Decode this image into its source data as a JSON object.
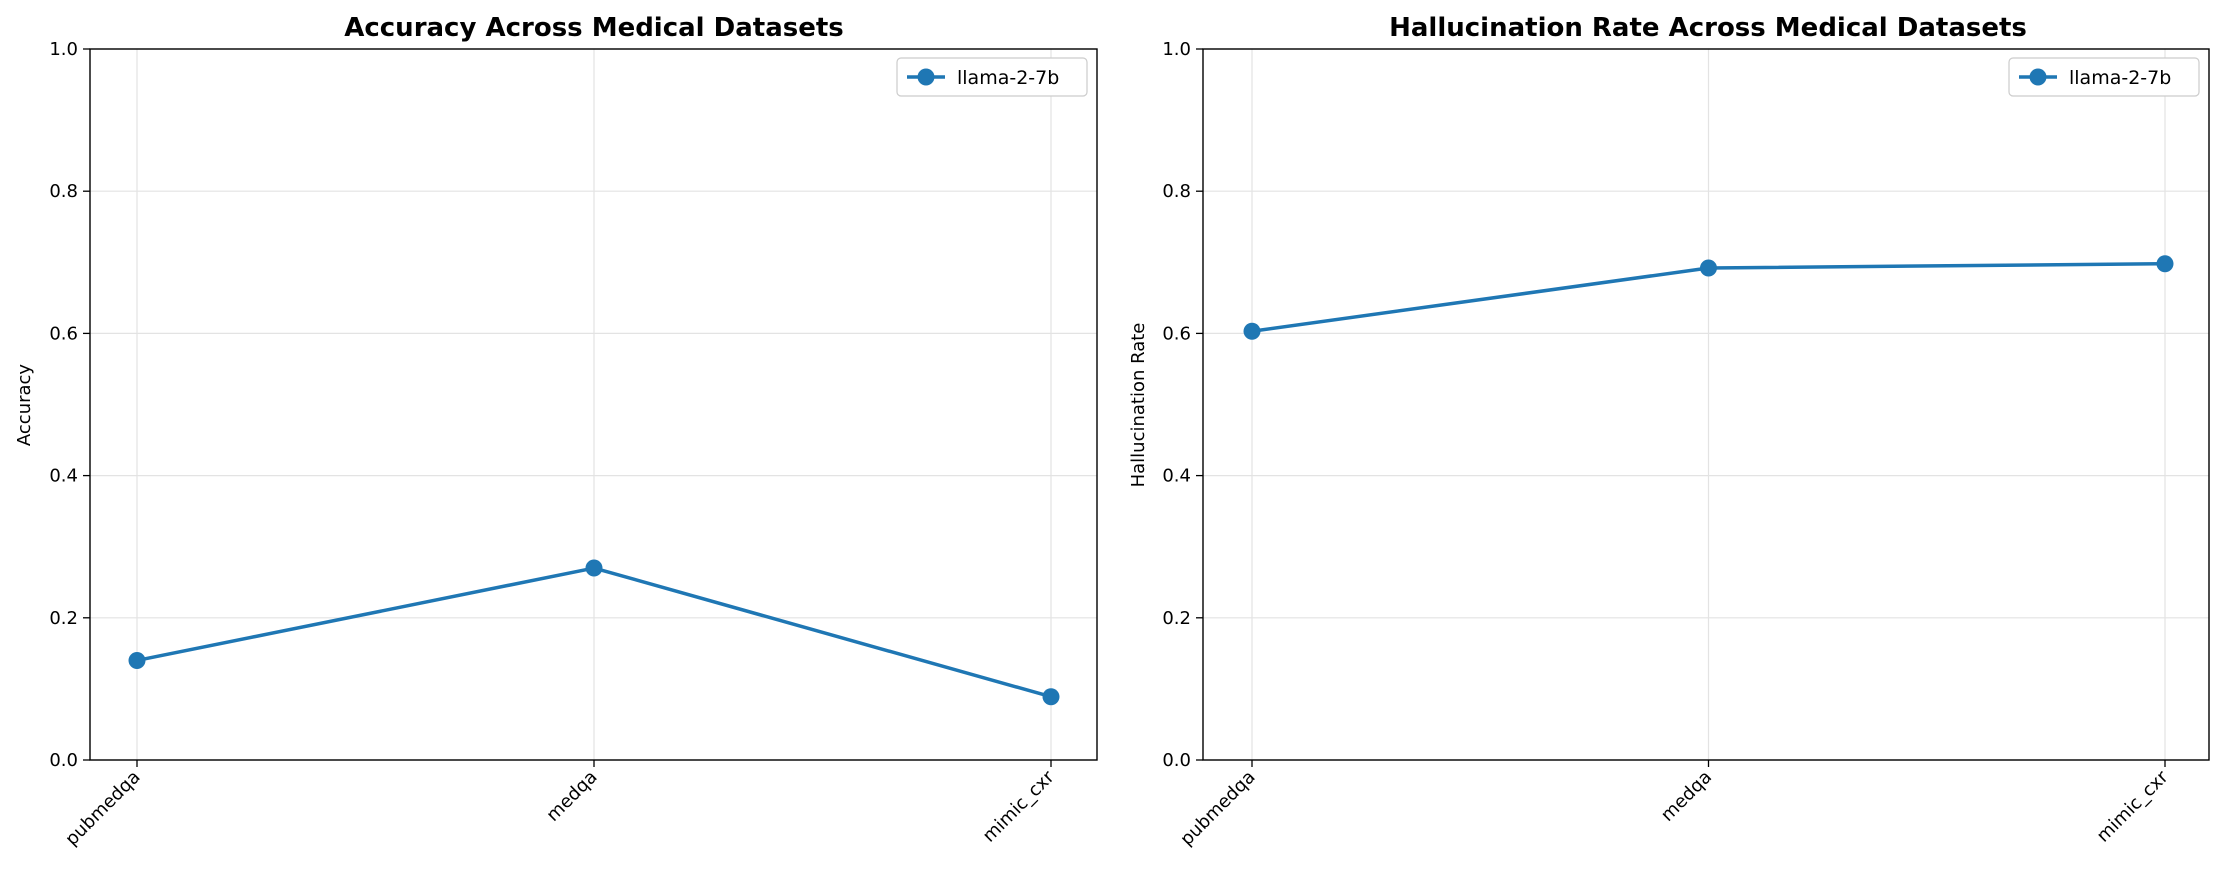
{
  "chart_data": [
    {
      "type": "line",
      "title": "Accuracy Across Medical Datasets",
      "xlabel": "",
      "ylabel": "Accuracy",
      "categories": [
        "pubmedqa",
        "medqa",
        "mimic_cxr"
      ],
      "series": [
        {
          "name": "llama-2-7b",
          "values": [
            0.14,
            0.27,
            0.089
          ],
          "color": "#1f77b4"
        }
      ],
      "ylim": [
        0,
        1
      ],
      "yticks": [
        0.0,
        0.2,
        0.4,
        0.6,
        0.8,
        1.0
      ],
      "ytick_labels": [
        "0.0",
        "0.2",
        "0.4",
        "0.6",
        "0.8",
        "1.0"
      ],
      "grid": true,
      "legend_position": "top-right"
    },
    {
      "type": "line",
      "title": "Hallucination Rate Across Medical Datasets",
      "xlabel": "",
      "ylabel": "Hallucination Rate",
      "categories": [
        "pubmedqa",
        "medqa",
        "mimic_cxr"
      ],
      "series": [
        {
          "name": "llama-2-7b",
          "values": [
            0.603,
            0.692,
            0.698
          ],
          "color": "#1f77b4"
        }
      ],
      "ylim": [
        0,
        1
      ],
      "yticks": [
        0.0,
        0.2,
        0.4,
        0.6,
        0.8,
        1.0
      ],
      "ytick_labels": [
        "0.0",
        "0.2",
        "0.4",
        "0.6",
        "0.8",
        "1.0"
      ],
      "grid": true,
      "legend_position": "top-right"
    }
  ]
}
